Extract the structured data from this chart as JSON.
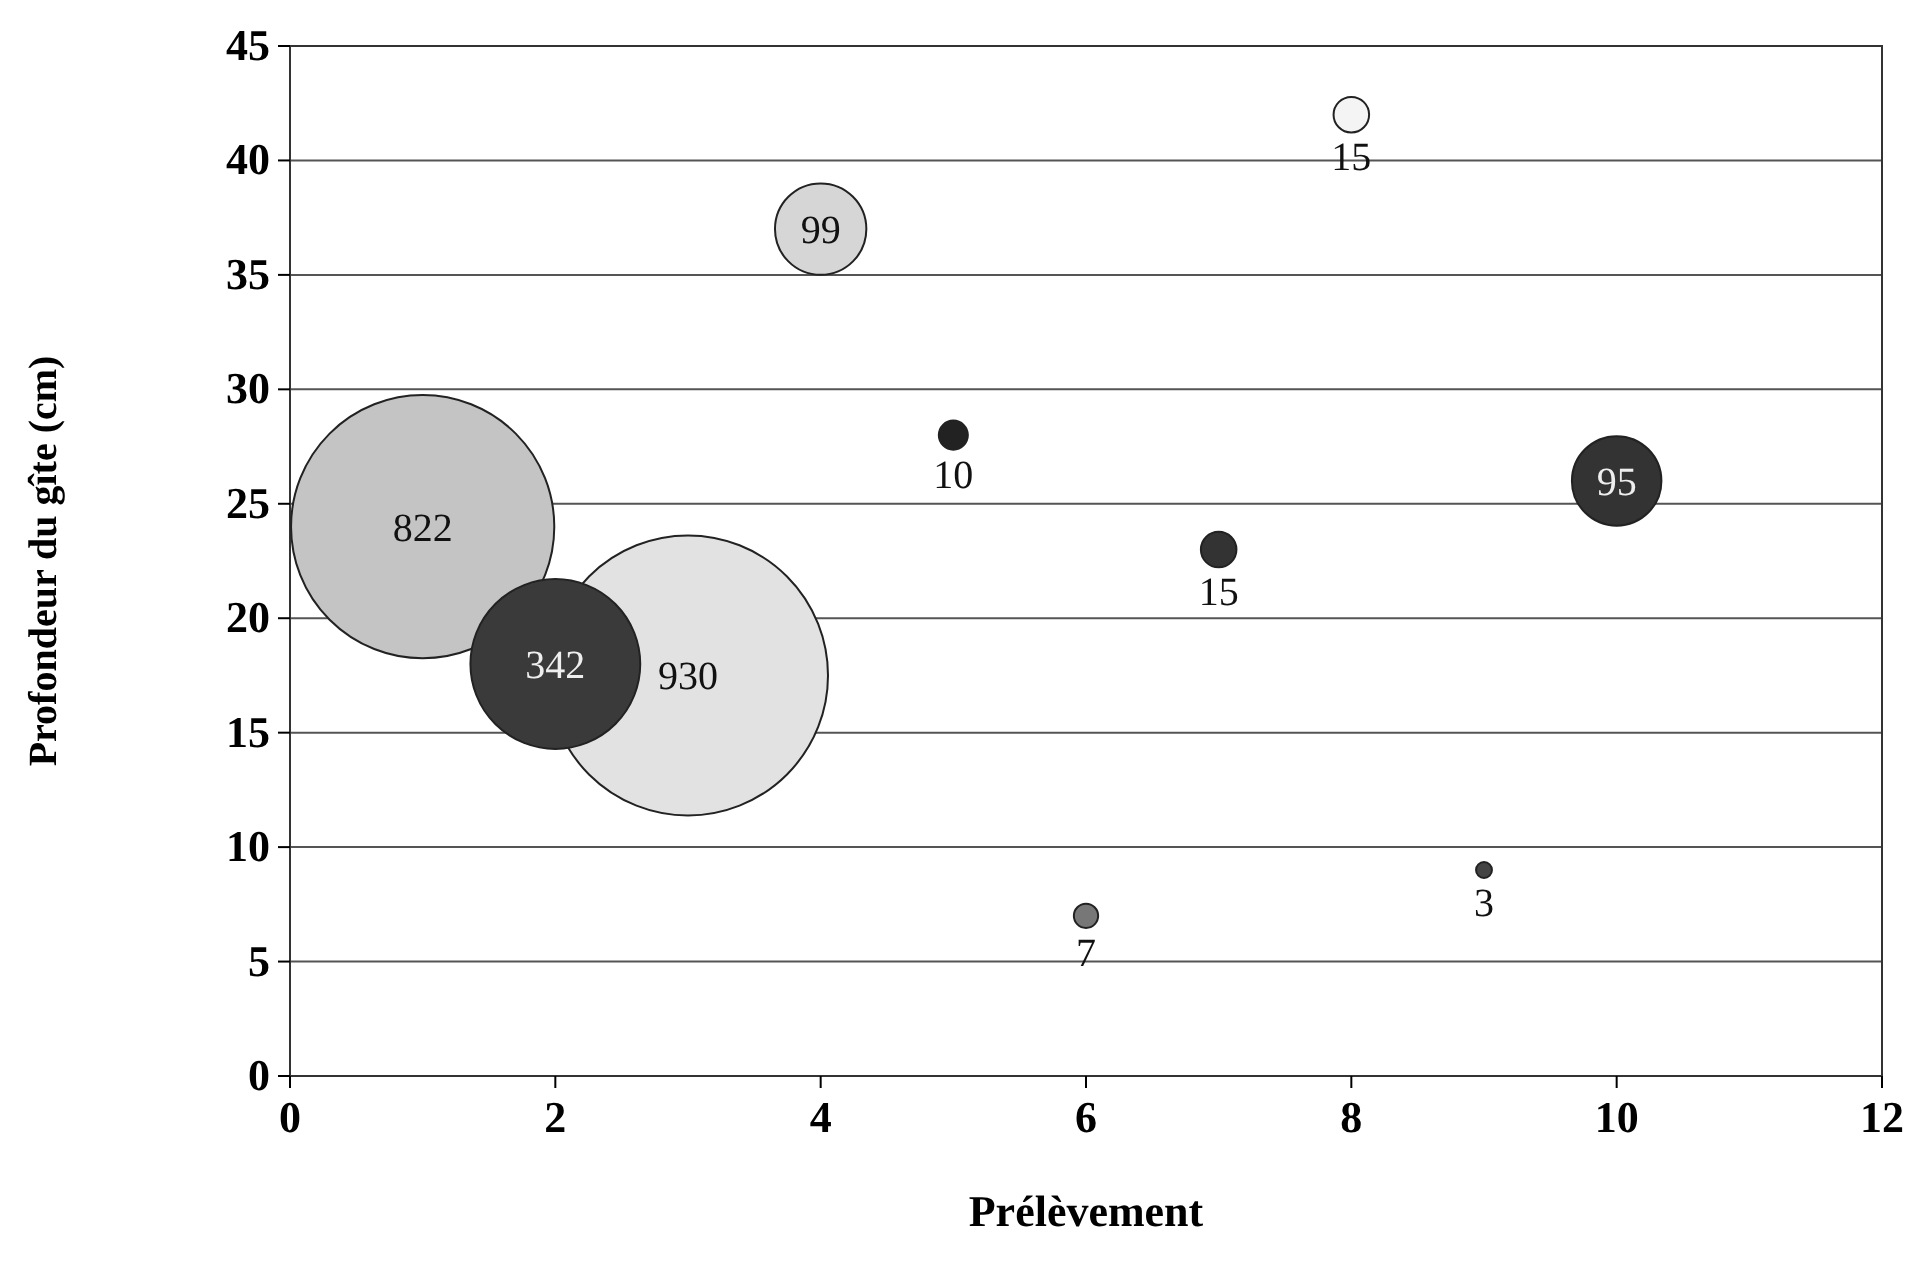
{
  "chart_data": {
    "type": "bubble",
    "xlabel": "Prélèvement",
    "ylabel": "Profondeur du gîte (cm)",
    "x": [
      1,
      2,
      3,
      4,
      5,
      6,
      7,
      8,
      9,
      10
    ],
    "values": [
      24,
      18,
      17.5,
      37,
      28,
      7,
      23,
      42,
      9,
      26
    ],
    "sizes": [
      822,
      342,
      930,
      99,
      10,
      7,
      15,
      15,
      3,
      95
    ],
    "value_labels": [
      "822",
      "342",
      "930",
      "99",
      "10",
      "7",
      "15",
      "15",
      "3",
      "95"
    ],
    "colors": [
      "#c4c4c4",
      "#3a3a3a",
      "#e2e2e2",
      "#d6d6d6",
      "#222222",
      "#777777",
      "#333333",
      "#f4f4f4",
      "#444444",
      "#333333"
    ],
    "xlim": [
      0,
      12
    ],
    "xticks": [
      0,
      2,
      4,
      6,
      8,
      10,
      12
    ],
    "ylim": [
      0,
      45
    ],
    "yticks": [
      0,
      5,
      10,
      15,
      20,
      25,
      30,
      35,
      40,
      45
    ],
    "grid": "y"
  }
}
